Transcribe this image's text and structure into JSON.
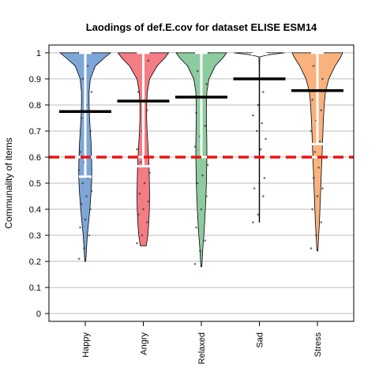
{
  "chart_data": {
    "type": "violin",
    "title": "Laodings of def.E.cov for dataset ELISE ESM14",
    "xlabel": "",
    "ylabel": "Communality of items",
    "ylim": [
      -0.03,
      1.03
    ],
    "yticks": [
      0,
      0.1,
      0.2,
      0.3,
      0.4,
      0.5,
      0.6,
      0.7,
      0.8,
      0.9,
      1
    ],
    "ytick_labels": [
      "0",
      "0.1",
      "0.2",
      "0.3",
      "0.4",
      "0.5",
      "0.6",
      "0.7",
      "0.8",
      "0.9",
      "1"
    ],
    "grid": true,
    "reference_line": {
      "value": 0.6,
      "color": "#ee1111",
      "style": "dashed"
    },
    "categories": [
      "Happy",
      "Angry",
      "Relaxed",
      "Sad",
      "Stress"
    ],
    "series": [
      {
        "color": "#7ea6d8",
        "min": 0.2,
        "max": 1.0,
        "mean": 0.775,
        "median": 0.6,
        "whisker_low": 0.525,
        "whisker_high": 1.0,
        "density": [
          [
            0.2,
            0.02
          ],
          [
            0.25,
            0.05
          ],
          [
            0.3,
            0.08
          ],
          [
            0.35,
            0.13
          ],
          [
            0.4,
            0.18
          ],
          [
            0.45,
            0.22
          ],
          [
            0.5,
            0.25
          ],
          [
            0.55,
            0.26
          ],
          [
            0.6,
            0.25
          ],
          [
            0.65,
            0.23
          ],
          [
            0.7,
            0.2
          ],
          [
            0.75,
            0.17
          ],
          [
            0.8,
            0.15
          ],
          [
            0.85,
            0.15
          ],
          [
            0.9,
            0.2
          ],
          [
            0.95,
            0.4
          ],
          [
            0.98,
            0.75
          ],
          [
            1.0,
            1.0
          ]
        ],
        "points": [
          0.21,
          0.25,
          0.3,
          0.33,
          0.36,
          0.4,
          0.42,
          0.45,
          0.47,
          0.5,
          0.52,
          0.55,
          0.58,
          0.6,
          0.62,
          0.65,
          0.7,
          0.75,
          0.8,
          0.85,
          0.9,
          0.95,
          1.0,
          1.0,
          1.0
        ]
      },
      {
        "color": "#f47c83",
        "min": 0.26,
        "max": 1.0,
        "mean": 0.815,
        "median": 0.6,
        "whisker_low": 0.565,
        "whisker_high": 1.0,
        "density": [
          [
            0.26,
            0.12
          ],
          [
            0.3,
            0.18
          ],
          [
            0.35,
            0.22
          ],
          [
            0.4,
            0.24
          ],
          [
            0.45,
            0.25
          ],
          [
            0.5,
            0.24
          ],
          [
            0.55,
            0.23
          ],
          [
            0.6,
            0.21
          ],
          [
            0.65,
            0.18
          ],
          [
            0.7,
            0.15
          ],
          [
            0.75,
            0.13
          ],
          [
            0.8,
            0.13
          ],
          [
            0.85,
            0.16
          ],
          [
            0.9,
            0.25
          ],
          [
            0.95,
            0.55
          ],
          [
            0.98,
            0.85
          ],
          [
            1.0,
            1.0
          ]
        ],
        "points": [
          0.27,
          0.3,
          0.35,
          0.38,
          0.4,
          0.43,
          0.46,
          0.5,
          0.54,
          0.58,
          0.6,
          0.63,
          0.7,
          0.78,
          0.85,
          0.92,
          0.97,
          1.0,
          1.0
        ]
      },
      {
        "color": "#8ecb9f",
        "min": 0.18,
        "max": 1.0,
        "mean": 0.83,
        "median": 0.6,
        "whisker_low": 0.6,
        "whisker_high": 1.0,
        "density": [
          [
            0.18,
            0.02
          ],
          [
            0.25,
            0.06
          ],
          [
            0.3,
            0.1
          ],
          [
            0.35,
            0.13
          ],
          [
            0.4,
            0.16
          ],
          [
            0.45,
            0.18
          ],
          [
            0.5,
            0.2
          ],
          [
            0.55,
            0.21
          ],
          [
            0.6,
            0.22
          ],
          [
            0.65,
            0.22
          ],
          [
            0.7,
            0.21
          ],
          [
            0.75,
            0.2
          ],
          [
            0.8,
            0.2
          ],
          [
            0.85,
            0.22
          ],
          [
            0.9,
            0.3
          ],
          [
            0.95,
            0.55
          ],
          [
            0.98,
            0.85
          ],
          [
            1.0,
            1.0
          ]
        ],
        "points": [
          0.19,
          0.24,
          0.28,
          0.33,
          0.4,
          0.45,
          0.5,
          0.53,
          0.57,
          0.6,
          0.6,
          0.64,
          0.68,
          0.72,
          0.77,
          0.82,
          0.88,
          0.93,
          1.0,
          1.0
        ]
      },
      {
        "color": "#ffffff",
        "min": 0.35,
        "max": 1.0,
        "mean": 0.9,
        "median": 0.995,
        "whisker_low": 0.995,
        "whisker_high": 1.0,
        "density": [
          [
            0.35,
            0.01
          ],
          [
            0.95,
            0.01
          ],
          [
            0.985,
            0.02
          ],
          [
            0.993,
            0.4
          ],
          [
            1.0,
            1.0
          ]
        ],
        "points": [
          0.35,
          0.38,
          0.45,
          0.48,
          0.5,
          0.52,
          0.6,
          0.63,
          0.67,
          0.7,
          0.73,
          0.76,
          0.8,
          0.85,
          1.0,
          1.0
        ]
      },
      {
        "color": "#f9b27d",
        "min": 0.24,
        "max": 1.0,
        "mean": 0.855,
        "median": 0.6,
        "whisker_low": 0.65,
        "whisker_high": 1.0,
        "density": [
          [
            0.24,
            0.02
          ],
          [
            0.3,
            0.05
          ],
          [
            0.35,
            0.08
          ],
          [
            0.4,
            0.1
          ],
          [
            0.45,
            0.12
          ],
          [
            0.5,
            0.14
          ],
          [
            0.55,
            0.16
          ],
          [
            0.6,
            0.18
          ],
          [
            0.65,
            0.2
          ],
          [
            0.7,
            0.22
          ],
          [
            0.75,
            0.24
          ],
          [
            0.8,
            0.27
          ],
          [
            0.85,
            0.32
          ],
          [
            0.9,
            0.45
          ],
          [
            0.95,
            0.7
          ],
          [
            0.98,
            0.9
          ],
          [
            1.0,
            1.0
          ]
        ],
        "points": [
          0.25,
          0.3,
          0.35,
          0.4,
          0.45,
          0.48,
          0.52,
          0.56,
          0.6,
          0.62,
          0.66,
          0.7,
          0.74,
          0.78,
          0.82,
          0.86,
          0.9,
          0.95,
          1.0
        ]
      }
    ]
  }
}
